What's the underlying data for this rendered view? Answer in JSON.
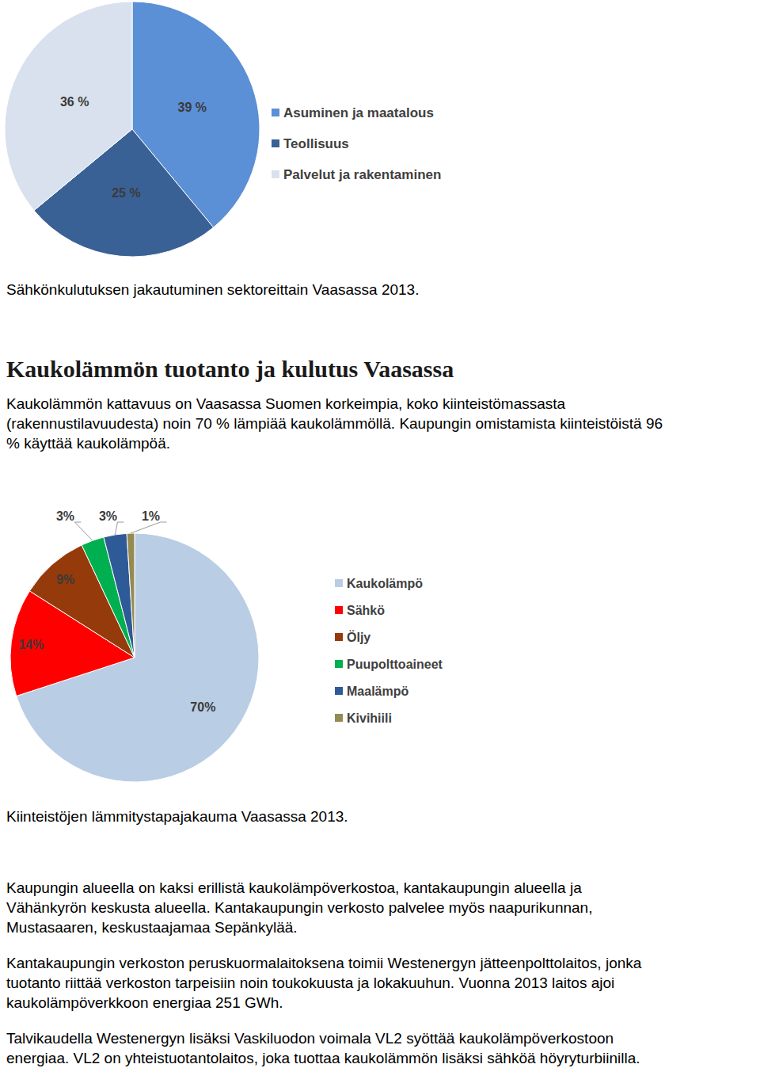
{
  "chart_data": [
    {
      "type": "pie",
      "title": "Sähkönkulutuksen jakautuminen sektoreittain Vaasassa 2013.",
      "categories": [
        "Asuminen ja maatalous",
        "Teollisuus",
        "Palvelut ja rakentaminen"
      ],
      "values": [
        39,
        25,
        36
      ],
      "value_labels": [
        "39 %",
        "25 %",
        "36 %"
      ],
      "colors": [
        "#5b8fd6",
        "#3a6196",
        "#d9e1ee"
      ],
      "data_labels": true,
      "legend": "right"
    },
    {
      "type": "pie",
      "title": "Kiinteistöjen lämmitystapajakauma Vaasassa 2013.",
      "categories": [
        "Kaukolämpö",
        "Sähkö",
        "Öljy",
        "Puupolttoaineet",
        "Maalämpö",
        "Kivihiili"
      ],
      "values": [
        70,
        14,
        9,
        3,
        3,
        1
      ],
      "value_labels": [
        "70%",
        "14%",
        "9%",
        "3%",
        "3%",
        "1%"
      ],
      "colors": [
        "#b9cde5",
        "#ff0000",
        "#953a0a",
        "#00b050",
        "#2f5a98",
        "#948a54"
      ],
      "data_labels": true,
      "legend": "right"
    }
  ],
  "section": {
    "heading": "Kaukolämmön tuotanto ja kulutus Vaasassa",
    "intro": [
      "Kaukolämmön kattavuus on Vaasassa Suomen korkeimpia, koko kiinteistömassasta",
      "(rakennustilavuudesta) noin 70 % lämpiää kaukolämmöllä. Kaupungin omistamista kiinteistöistä 96",
      "% käyttää kaukolämpöä."
    ],
    "body": [
      [
        "Kaupungin alueella on kaksi erillistä kaukolämpöverkostoa, kantakaupungin alueella ja",
        "Vähänkyrön keskusta alueella. Kantakaupungin verkosto palvelee myös naapurikunnan,",
        "Mustasaaren, keskustaajamaa Sepänkylää."
      ],
      [
        "Kantakaupungin verkoston peruskuormalaitoksena toimii Westenergyn jätteenpolttolaitos, jonka",
        "tuotanto riittää verkoston tarpeisiin noin toukokuusta ja lokakuuhun. Vuonna 2013 laitos ajoi",
        "kaukolämpöverkkoon energiaa 251 GWh."
      ],
      [
        "Talvikaudella Westenergyn lisäksi Vaskiluodon voimala VL2 syöttää kaukolämpöverkostoon",
        "energiaa. VL2 on yhteistuotantolaitos, joka tuottaa kaukolämmön lisäksi sähköä höyryturbiinilla."
      ]
    ]
  }
}
